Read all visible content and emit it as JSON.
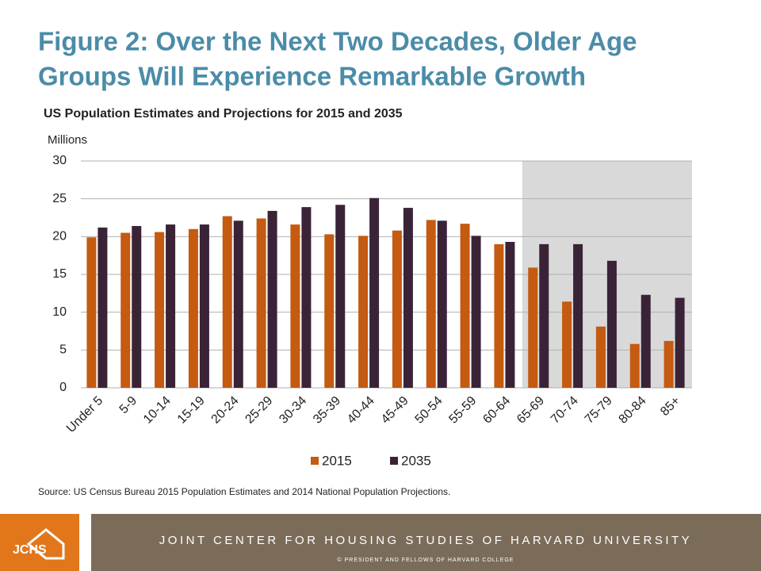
{
  "chart_data": {
    "type": "bar",
    "title": [
      "Figure 2: Over the Next Two Decades, Older Age",
      "Groups Will Experience Remarkable Growth"
    ],
    "subtitle": "US Population Estimates and Projections for 2015 and 2035",
    "y_axis_label": "Millions",
    "categories": [
      "Under 5",
      "5-9",
      "10-14",
      "15-19",
      "20-24",
      "25-29",
      "30-34",
      "35-39",
      "40-44",
      "45-49",
      "50-54",
      "55-59",
      "60-64",
      "65-69",
      "70-74",
      "75-79",
      "80-84",
      "85+"
    ],
    "series": [
      {
        "name": "2015",
        "color": "#c55a11",
        "values": [
          19.9,
          20.5,
          20.6,
          21.0,
          22.7,
          22.4,
          21.6,
          20.3,
          20.1,
          20.8,
          22.2,
          21.7,
          19.0,
          15.9,
          11.4,
          8.1,
          5.8,
          6.2
        ]
      },
      {
        "name": "2035",
        "color": "#3a2337",
        "values": [
          21.2,
          21.4,
          21.6,
          21.6,
          22.1,
          23.4,
          23.9,
          24.2,
          25.1,
          23.8,
          22.1,
          20.1,
          19.3,
          19.0,
          19.0,
          16.8,
          12.3,
          11.9
        ]
      }
    ],
    "ylim": [
      0,
      30
    ],
    "yticks": [
      0,
      5,
      10,
      15,
      20,
      25,
      30
    ],
    "grid": true,
    "legend": "bottom",
    "source": "Source: US Census Bureau 2015 Population Estimates and 2014 National Population Projections."
  },
  "footer": {
    "logo": "JCHS",
    "organization": "JOINT CENTER FOR HOUSING STUDIES OF HARVARD UNIVERSITY",
    "copyright": "© PRESIDENT  AND FELLOWS  OF  HARVARD  COLLEGE"
  }
}
